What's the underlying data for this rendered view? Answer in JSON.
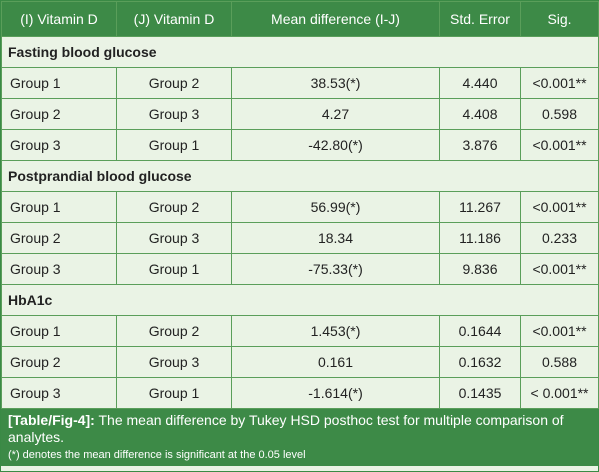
{
  "headers": [
    "(I) Vitamin D",
    "(J) Vitamin D",
    "Mean difference (I-J)",
    "Std. Error",
    "Sig."
  ],
  "sections": [
    {
      "title": "Fasting blood glucose",
      "rows": [
        [
          "Group 1",
          "Group 2",
          "38.53(*)",
          "4.440",
          "<0.001**"
        ],
        [
          "Group 2",
          "Group 3",
          "4.27",
          "4.408",
          "0.598"
        ],
        [
          "Group 3",
          "Group 1",
          "-42.80(*)",
          "3.876",
          "<0.001**"
        ]
      ]
    },
    {
      "title": "Postprandial blood glucose",
      "rows": [
        [
          "Group 1",
          "Group 2",
          "56.99(*)",
          "11.267",
          "<0.001**"
        ],
        [
          "Group 2",
          "Group 3",
          "18.34",
          "11.186",
          "0.233"
        ],
        [
          "Group 3",
          "Group 1",
          "-75.33(*)",
          "9.836",
          "<0.001**"
        ]
      ]
    },
    {
      "title": "HbA1c",
      "rows": [
        [
          "Group 1",
          "Group 2",
          "1.453(*)",
          "0.1644",
          "<0.001**"
        ],
        [
          "Group 2",
          "Group 3",
          "0.161",
          "0.1632",
          "0.588"
        ],
        [
          "Group 3",
          "Group 1",
          "-1.614(*)",
          "0.1435",
          "< 0.001**"
        ]
      ]
    }
  ],
  "caption": {
    "label": "[Table/Fig-4]:",
    "text": " The mean difference by Tukey HSD posthoc test for multiple comparison of analytes.",
    "note": "(*) denotes the mean difference is significant at the 0.05 level"
  }
}
